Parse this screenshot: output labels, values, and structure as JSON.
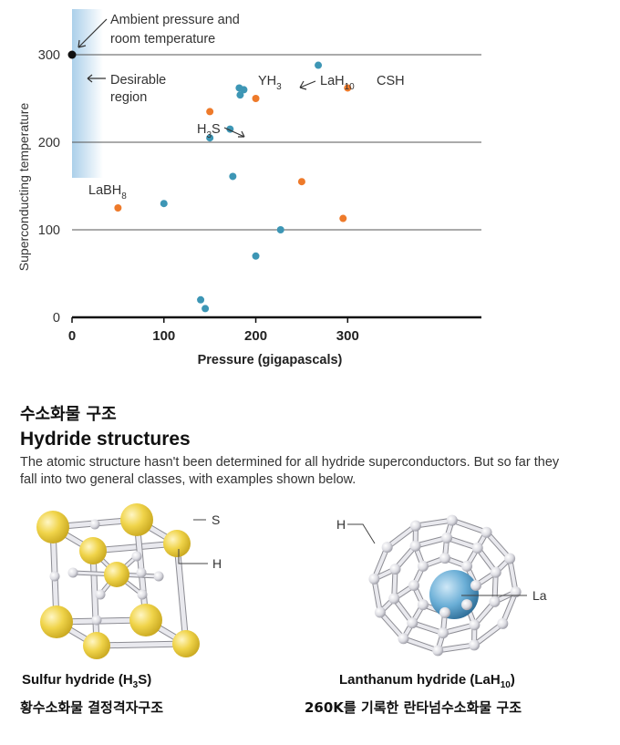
{
  "chart_data": {
    "type": "scatter",
    "xlabel": "Pressure (gigapascals)",
    "ylabel": "Superconducting temperature",
    "xlim": [
      0,
      340
    ],
    "ylim": [
      0,
      310
    ],
    "xticks": [
      0,
      100,
      200,
      300
    ],
    "yticks": [
      0,
      100,
      200,
      300
    ],
    "grid": "horizontal",
    "colors": {
      "blue": "#3d96b5",
      "orange": "#ee7a2a",
      "black": "#111111"
    },
    "series": [
      {
        "color_key": "blue",
        "points": [
          [
            100,
            130
          ],
          [
            140,
            20
          ],
          [
            145,
            10
          ],
          [
            150,
            205
          ],
          [
            172,
            215
          ],
          [
            175,
            161
          ],
          [
            182,
            262
          ],
          [
            183,
            254
          ],
          [
            187,
            260
          ],
          [
            200,
            70
          ],
          [
            227,
            100
          ],
          [
            268,
            288
          ]
        ]
      },
      {
        "color_key": "orange",
        "points": [
          [
            50,
            125
          ],
          [
            150,
            235
          ],
          [
            200,
            250
          ],
          [
            250,
            155
          ],
          [
            295,
            113
          ],
          [
            300,
            262
          ]
        ]
      },
      {
        "color_key": "black",
        "points": [
          [
            0,
            300
          ]
        ]
      }
    ],
    "annotations": {
      "ambient": [
        "Ambient pressure and",
        "room temperature"
      ],
      "desirable": [
        "Desirable",
        "region"
      ],
      "yh3": {
        "base": "YH",
        "sub": "3"
      },
      "lah10": {
        "base": "LaH",
        "sub": "10"
      },
      "csh": "CSH",
      "h3s": {
        "base": "H",
        "sub": "3",
        "tail": "S"
      },
      "labh8": {
        "base": "LaBH",
        "sub": "8"
      }
    }
  },
  "section": {
    "title_ko": "수소화물 구조",
    "title_en": "Hydride structures",
    "description": "The atomic structure hasn't been determined for all hydride superconductors. But so far they fall into two general classes, with examples shown below."
  },
  "structures": {
    "sulfur": {
      "caption_base": "Sulfur hydride (H",
      "caption_sub": "3",
      "caption_tail": "S)",
      "label_s": "S",
      "label_h": "H",
      "caption_ko": "황수소화물 결정격자구조",
      "colors": {
        "atom_s": "#f0d44a",
        "atom_h": "#e4e4e8",
        "bond": "#d9d9de"
      }
    },
    "lanthanum": {
      "caption_base": "Lanthanum hydride (LaH",
      "caption_sub": "10",
      "caption_tail": ")",
      "label_h": "H",
      "label_la": "La",
      "caption_ko": "260K를 기록한 란타넘수소화물 구조",
      "colors": {
        "atom_la": "#6aaed6",
        "atom_h": "#e6e6ea",
        "bond": "#d4d4d8"
      }
    }
  }
}
